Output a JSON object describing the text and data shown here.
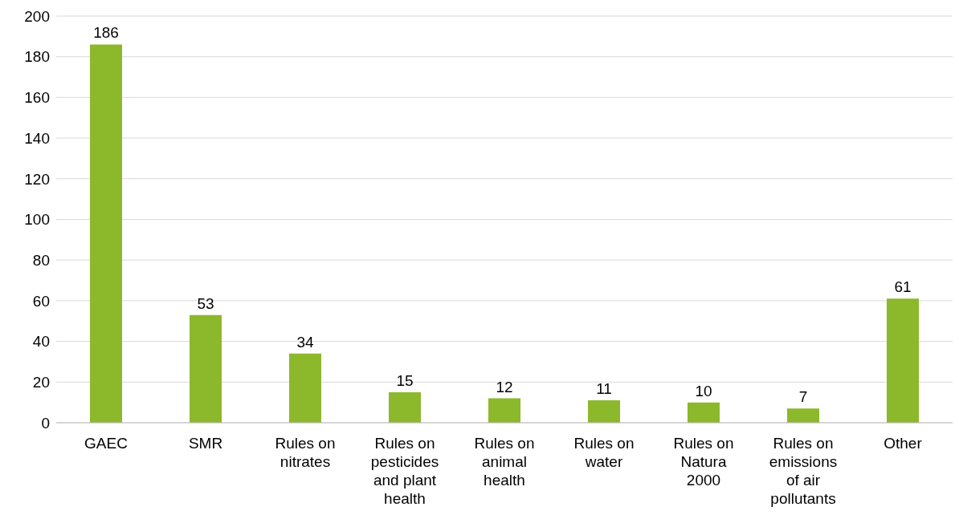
{
  "chart_data": {
    "type": "bar",
    "categories": [
      "GAEC",
      "SMR",
      "Rules on nitrates",
      "Rules on pesticides and plant health",
      "Rules on animal health",
      "Rules on water",
      "Rules on Natura 2000",
      "Rules on emissions of air pollutants",
      "Other"
    ],
    "values": [
      186,
      53,
      34,
      15,
      12,
      11,
      10,
      7,
      61
    ],
    "color": "#8cb82b",
    "ylim": [
      0,
      200
    ],
    "yticks": [
      0,
      20,
      40,
      60,
      80,
      100,
      120,
      140,
      160,
      180,
      200
    ],
    "grid": "y",
    "data_labels": true,
    "legend": false
  }
}
